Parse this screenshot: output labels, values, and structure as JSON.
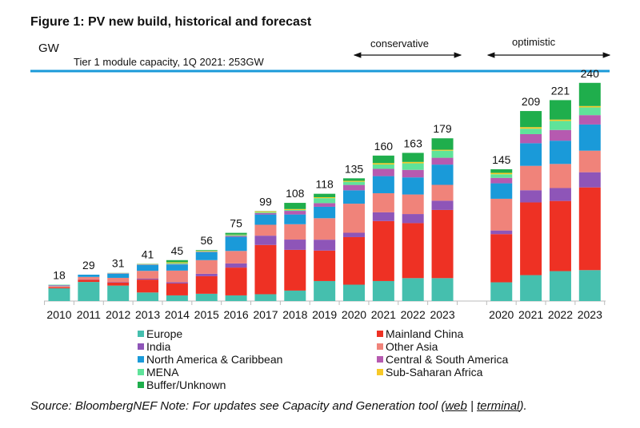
{
  "figure_title": "Figure 1:  PV new build, historical and forecast",
  "source": {
    "prefix": "Source: BloombergNEF Note: For updates see Capacity and Generation tool (",
    "link_web": "web",
    "separator": " | ",
    "link_terminal": "terminal",
    "suffix": ")."
  },
  "chart_data": {
    "type": "bar",
    "stacked": true,
    "title": "Figure 1:  PV new build, historical and forecast",
    "ylabel": "GW",
    "ylim": [
      0,
      260
    ],
    "grid": false,
    "legend_placement": "bottom",
    "reference_line": {
      "label": "Tier 1 module capacity, 1Q 2021: 253GW",
      "value": 253,
      "color": "#1a9ad9"
    },
    "groups": [
      {
        "label": "conservative",
        "categories": [
          "2020",
          "2021",
          "2022",
          "2023"
        ]
      },
      {
        "label": "optimistic",
        "categories": [
          "2020",
          "2021",
          "2022",
          "2023"
        ]
      }
    ],
    "categories": [
      "2010",
      "2011",
      "2012",
      "2013",
      "2014",
      "2015",
      "2016",
      "2017",
      "2018",
      "2019",
      "2020",
      "2021",
      "2022",
      "2023",
      "2020",
      "2021",
      "2022",
      "2023"
    ],
    "totals": [
      18,
      29,
      31,
      41,
      45,
      56,
      75,
      99,
      108,
      118,
      135,
      160,
      163,
      179,
      145,
      209,
      221,
      240
    ],
    "series": [
      {
        "name": "Europe",
        "color": "#45bfae",
        "values": [
          14,
          21,
          17,
          9.4,
          6.2,
          8,
          6.2,
          7.5,
          11.5,
          22,
          18,
          22,
          25.2,
          25.2,
          20.6,
          28.5,
          32.9,
          34
        ]
      },
      {
        "name": "Mainland China",
        "color": "#ee3124",
        "values": [
          1,
          2.5,
          3.5,
          14.2,
          13.1,
          19.3,
          30.6,
          54.2,
          44.8,
          33.5,
          52.3,
          66,
          60.5,
          75,
          53,
          80,
          77.2,
          91
        ]
      },
      {
        "name": "India",
        "color": "#8e55b8",
        "values": [
          0,
          0.3,
          0.5,
          1,
          1.3,
          2.7,
          4.6,
          10.2,
          11.3,
          12,
          4.8,
          9.6,
          10,
          10.2,
          4,
          13.4,
          14.2,
          16.7
        ]
      },
      {
        "name": "Other Asia",
        "color": "#f0837a",
        "values": [
          1.5,
          2.7,
          4.5,
          8.6,
          12.9,
          15,
          13.7,
          12,
          16.9,
          23.6,
          32,
          21,
          21.5,
          17.4,
          34.9,
          26.8,
          26.5,
          23.7
        ]
      },
      {
        "name": "North America & Caribbean",
        "color": "#1a9ad9",
        "values": [
          0.5,
          2.5,
          4.5,
          6.4,
          6.7,
          8.6,
          15.5,
          11.3,
          10.7,
          12.6,
          14.7,
          18.8,
          18.8,
          22.3,
          17,
          24.9,
          25.6,
          28.8
        ]
      },
      {
        "name": "Central & South America",
        "color": "#b65ab0",
        "values": [
          0.5,
          0,
          0.5,
          0.5,
          0.5,
          0.5,
          1,
          1.5,
          4,
          4,
          5.9,
          8,
          8.3,
          7.5,
          6,
          10,
          11.8,
          10.3
        ]
      },
      {
        "name": "MENA",
        "color": "#5fe39a",
        "values": [
          0.5,
          0,
          0.3,
          0.5,
          1,
          0.7,
          1,
          1,
          1,
          5.5,
          3.5,
          4.8,
          7.2,
          7.8,
          4,
          6,
          9.9,
          8.5
        ]
      },
      {
        "name": "Sub-Saharan Africa",
        "color": "#f7c928",
        "values": [
          0,
          0,
          0.1,
          0.2,
          1,
          0.5,
          0.5,
          1,
          1,
          1,
          1,
          1.5,
          1.5,
          1,
          1.5,
          1.7,
          1.5,
          1.5
        ]
      },
      {
        "name": "Buffer/Unknown",
        "color": "#1fae4c",
        "values": [
          0,
          0,
          0.1,
          0.2,
          2.3,
          0.7,
          1.9,
          0.3,
          6.8,
          3.8,
          2.8,
          8.3,
          10,
          12.6,
          4,
          17.7,
          21.4,
          25.5
        ]
      }
    ]
  }
}
